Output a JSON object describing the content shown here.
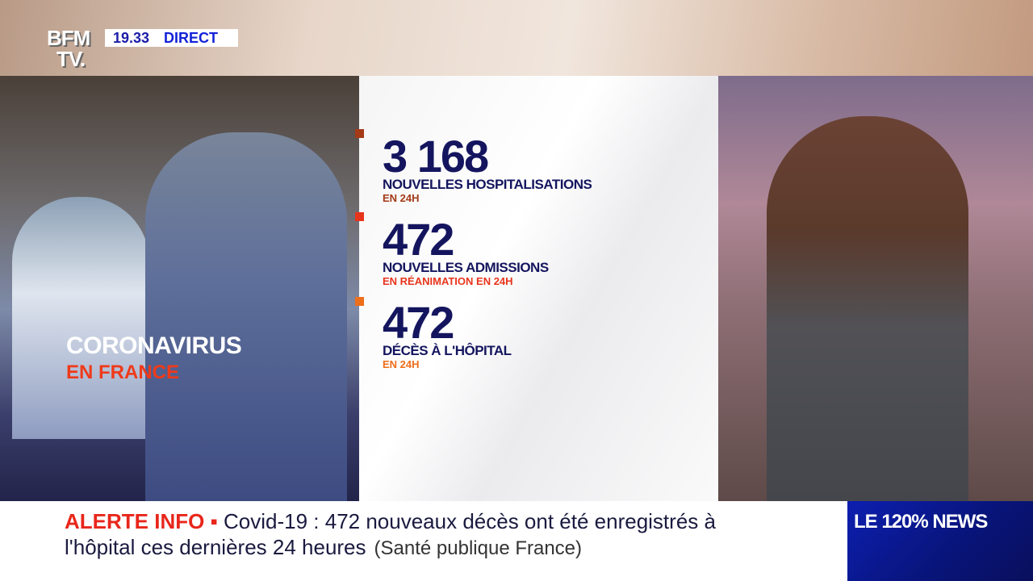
{
  "header": {
    "logo": "BFM TV.",
    "time": "19.33",
    "live_label": "DIRECT"
  },
  "photo_panel": {
    "title": "CORONAVIRUS",
    "subtitle": "EN FRANCE"
  },
  "stats": [
    {
      "value": "3 168",
      "label": "NOUVELLES HOSPITALISATIONS",
      "detail": "EN 24H",
      "color": "#a43a16"
    },
    {
      "value": "472",
      "label": "NOUVELLES ADMISSIONS",
      "detail": "EN RÉANIMATION EN 24H",
      "color": "#e8341c"
    },
    {
      "value": "472",
      "label": "DÉCÈS À L'HÔPITAL",
      "detail": "EN 24H",
      "color": "#ee6e1a"
    }
  ],
  "ticker": {
    "alert_label": "ALERTE INFO ▪",
    "line1": "Covid-19 : 472 nouveaux décès ont été enregistrés à",
    "line2": "l'hôpital ces dernières 24 heures",
    "source": "(Santé publique France)"
  },
  "show": {
    "name": "LE 120% NEWS"
  }
}
